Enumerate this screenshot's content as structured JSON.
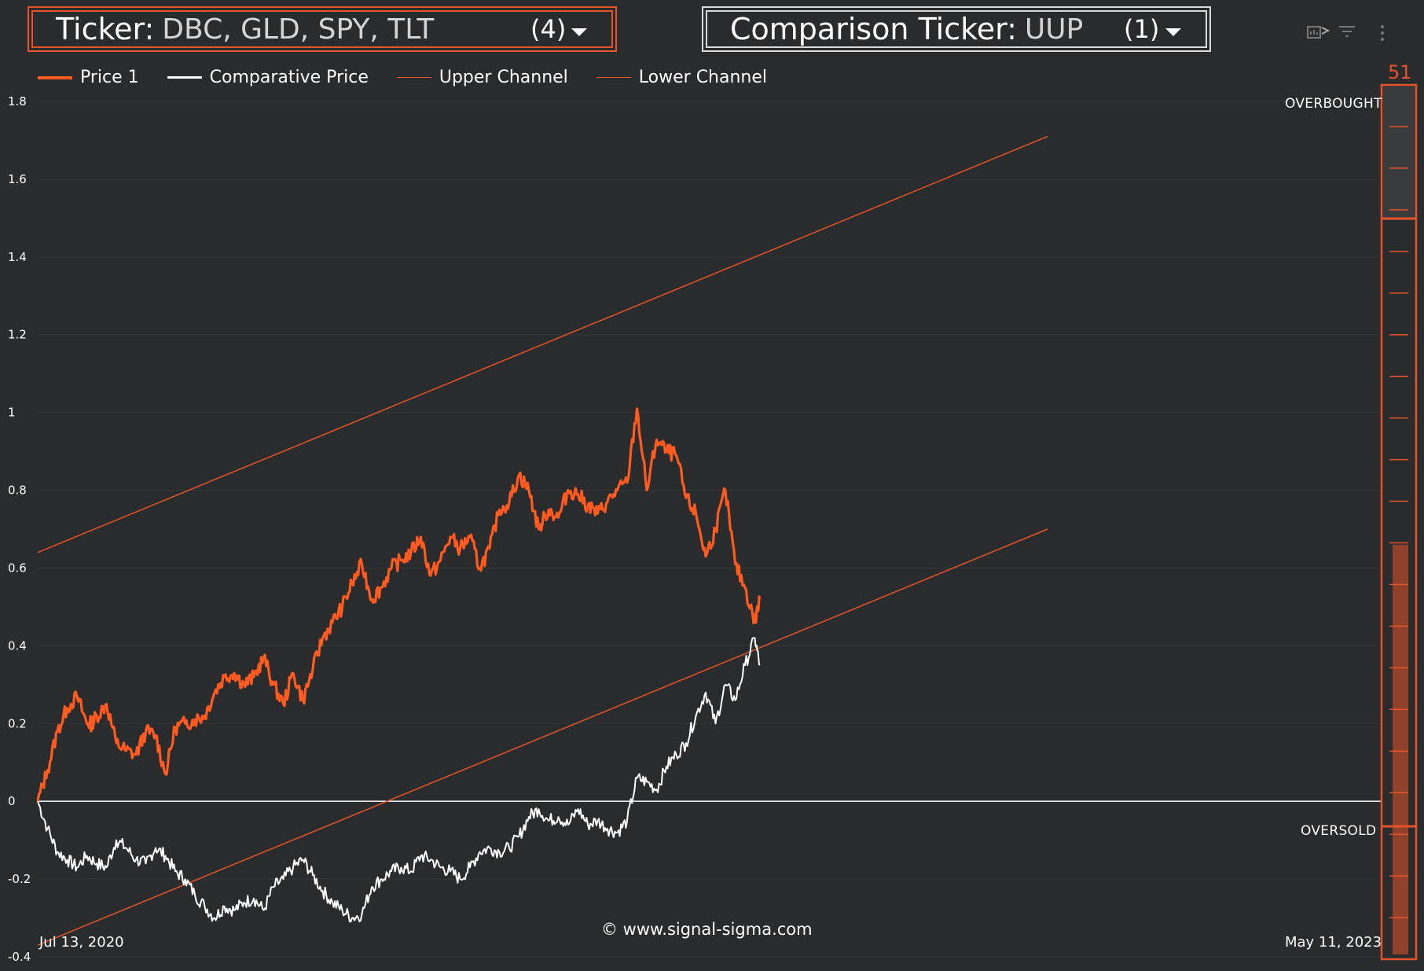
{
  "header": {
    "ticker": {
      "label": "Ticker:",
      "value": "DBC, GLD, SPY, TLT",
      "count": "(4)"
    },
    "comparison": {
      "label": "Comparison Ticker:",
      "value": "UUP",
      "count": "(1)"
    },
    "toolbar_icons": [
      "chart-settings-icon",
      "filter-icon",
      "more-vert-icon"
    ]
  },
  "colors": {
    "background": "#2a2b2c",
    "price": "#ff5a1f",
    "comparative": "#ffffff",
    "channel": "#e5532a",
    "grid": "#353637"
  },
  "watermark": "© www.signal-sigma.com",
  "gauge": {
    "value": "51",
    "value_fraction": 0.51,
    "zones": {
      "overbought": "OVERBOUGHT",
      "oversold": "OVERSOLD"
    }
  },
  "chart_data": {
    "type": "line",
    "title": "",
    "xlabel": "",
    "ylabel": "",
    "x_range": [
      "Jul 13, 2020",
      "May 11, 2023"
    ],
    "ylim": [
      -0.4,
      1.8
    ],
    "y_ticks": [
      "1.8",
      "1.6",
      "1.4",
      "1.2",
      "1",
      "0.8",
      "0.6",
      "0.4",
      "0.2",
      "0",
      "-0.2",
      "-0.4"
    ],
    "grid": true,
    "legend_position": "top-left",
    "x_index_range": [
      0,
      735
    ],
    "series": [
      {
        "name": "Price 1",
        "x": [
          0,
          10,
          20,
          30,
          40,
          50,
          55,
          60,
          70,
          80,
          90,
          100,
          110,
          120,
          130,
          140,
          150,
          160,
          170,
          180,
          190,
          200,
          210,
          220,
          230,
          240,
          250,
          260,
          270,
          280,
          290,
          300,
          310,
          320,
          330,
          340,
          350,
          360,
          370,
          380,
          390,
          400,
          410,
          420,
          430,
          440,
          450,
          460,
          470,
          480,
          490,
          500,
          510,
          520,
          530,
          540,
          550,
          560,
          570,
          580,
          590,
          600,
          610,
          620,
          630,
          640,
          650,
          660,
          670,
          680,
          690,
          700,
          710,
          720,
          730
        ],
        "y": [
          0,
          0.08,
          0.18,
          0.24,
          0.27,
          0.2,
          0.2,
          0.22,
          0.25,
          0.15,
          0.13,
          0.12,
          0.18,
          0.17,
          0.07,
          0.19,
          0.2,
          0.21,
          0.22,
          0.28,
          0.32,
          0.33,
          0.3,
          0.32,
          0.37,
          0.3,
          0.25,
          0.33,
          0.26,
          0.34,
          0.42,
          0.46,
          0.5,
          0.56,
          0.61,
          0.52,
          0.55,
          0.6,
          0.62,
          0.64,
          0.68,
          0.58,
          0.62,
          0.68,
          0.65,
          0.68,
          0.6,
          0.65,
          0.75,
          0.77,
          0.84,
          0.8,
          0.7,
          0.75,
          0.73,
          0.8,
          0.79,
          0.76,
          0.74,
          0.77,
          0.8,
          0.82,
          1.01,
          0.8,
          0.93,
          0.9,
          0.89,
          0.78,
          0.74,
          0.63,
          0.7,
          0.8,
          0.61,
          0.55,
          0.46
        ],
        "x_end": [
          735
        ],
        "y_end": [
          0.52
        ]
      },
      {
        "name": "Comparative Price",
        "x": [
          0,
          10,
          20,
          30,
          40,
          50,
          60,
          70,
          80,
          90,
          100,
          110,
          120,
          130,
          140,
          150,
          160,
          170,
          180,
          190,
          200,
          210,
          220,
          230,
          240,
          250,
          260,
          270,
          280,
          290,
          300,
          310,
          320,
          330,
          340,
          350,
          360,
          370,
          380,
          390,
          400,
          410,
          420,
          430,
          440,
          450,
          460,
          470,
          480,
          490,
          500,
          510,
          520,
          530,
          540,
          550,
          560,
          570,
          580,
          590,
          600,
          610,
          620,
          630,
          640,
          650,
          660,
          670,
          680,
          690,
          700,
          710,
          720,
          730,
          735
        ],
        "y": [
          0,
          -0.07,
          -0.13,
          -0.15,
          -0.17,
          -0.14,
          -0.16,
          -0.17,
          -0.1,
          -0.12,
          -0.15,
          -0.16,
          -0.12,
          -0.14,
          -0.18,
          -0.2,
          -0.24,
          -0.27,
          -0.3,
          -0.27,
          -0.28,
          -0.26,
          -0.25,
          -0.28,
          -0.22,
          -0.2,
          -0.17,
          -0.15,
          -0.19,
          -0.23,
          -0.26,
          -0.28,
          -0.3,
          -0.29,
          -0.22,
          -0.2,
          -0.18,
          -0.17,
          -0.18,
          -0.14,
          -0.15,
          -0.17,
          -0.18,
          -0.2,
          -0.17,
          -0.13,
          -0.12,
          -0.13,
          -0.12,
          -0.09,
          -0.04,
          -0.02,
          -0.05,
          -0.04,
          -0.06,
          -0.02,
          -0.06,
          -0.05,
          -0.07,
          -0.08,
          -0.05,
          0.06,
          0.05,
          0.03,
          0.09,
          0.12,
          0.15,
          0.22,
          0.28,
          0.2,
          0.3,
          0.26,
          0.35,
          0.42,
          0.35
        ]
      },
      {
        "name": "Upper Channel",
        "x": [
          0,
          1028
        ],
        "y": [
          0.64,
          1.71
        ]
      },
      {
        "name": "Lower Channel",
        "x": [
          0,
          1028
        ],
        "y": [
          -0.37,
          0.7
        ]
      }
    ],
    "gauge_ticks": {
      "count_upper": 10,
      "count_lower": 20
    }
  }
}
